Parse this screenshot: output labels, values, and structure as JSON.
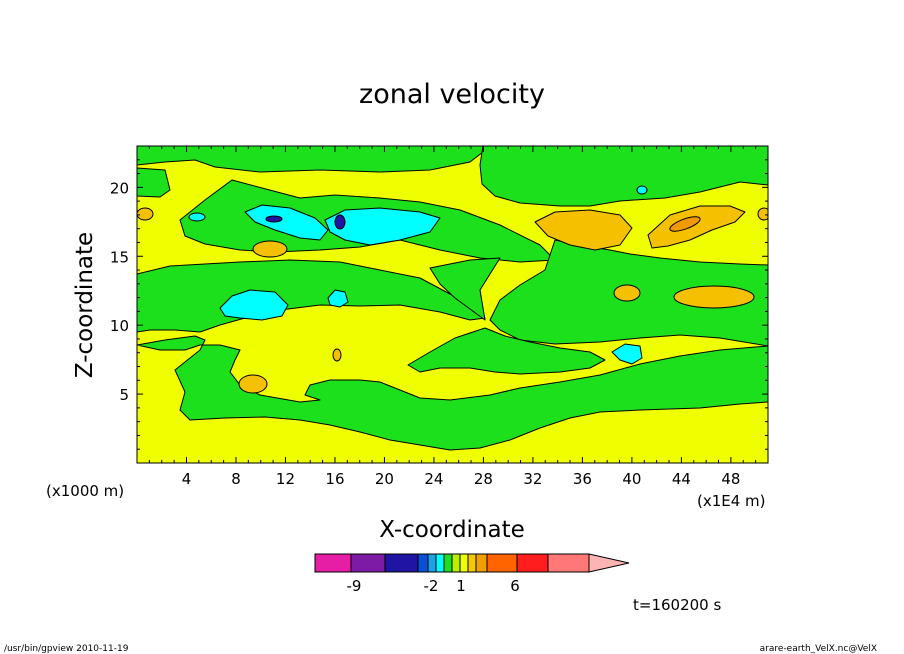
{
  "chart_data": {
    "type": "heatmap",
    "title": "zonal velocity",
    "xlabel": "X-coordinate",
    "ylabel": "Z-coordinate",
    "x_unit_label": "(x1E4 m)",
    "y_unit_label": "(x1000 m)",
    "xlim": [
      0,
      51
    ],
    "ylim": [
      0,
      23
    ],
    "x_ticks": [
      4,
      8,
      12,
      16,
      20,
      24,
      28,
      32,
      36,
      40,
      44,
      48
    ],
    "y_ticks": [
      5,
      10,
      15,
      20
    ],
    "time_label": "t=160200 s",
    "colorbar": {
      "tick_labels": [
        {
          "label": "-9",
          "value": -9
        },
        {
          "label": "-2",
          "value": -2
        },
        {
          "label": "1",
          "value": 1
        },
        {
          "label": "6",
          "value": 6
        }
      ],
      "colors": [
        "#e61ea6",
        "#7d1aa6",
        "#1f14a3",
        "#0a50d6",
        "#1aa3e6",
        "#00ffff",
        "#1ce01c",
        "#b8f000",
        "#f0ff00",
        "#f5c800",
        "#f0a000",
        "#ff6400",
        "#ff1e1e",
        "#ff7878",
        "#ffb4b4"
      ]
    },
    "colors": {
      "green": "#1ce01c",
      "yellow": "#f0ff00",
      "cyan": "#00ffff",
      "orange": "#f5c000",
      "dark_orange": "#f09a00",
      "blue": "#1f14a3"
    }
  },
  "footer": {
    "left": "/usr/bin/gpview   2010-11-19",
    "right": "arare-earth_VelX.nc@VelX"
  }
}
